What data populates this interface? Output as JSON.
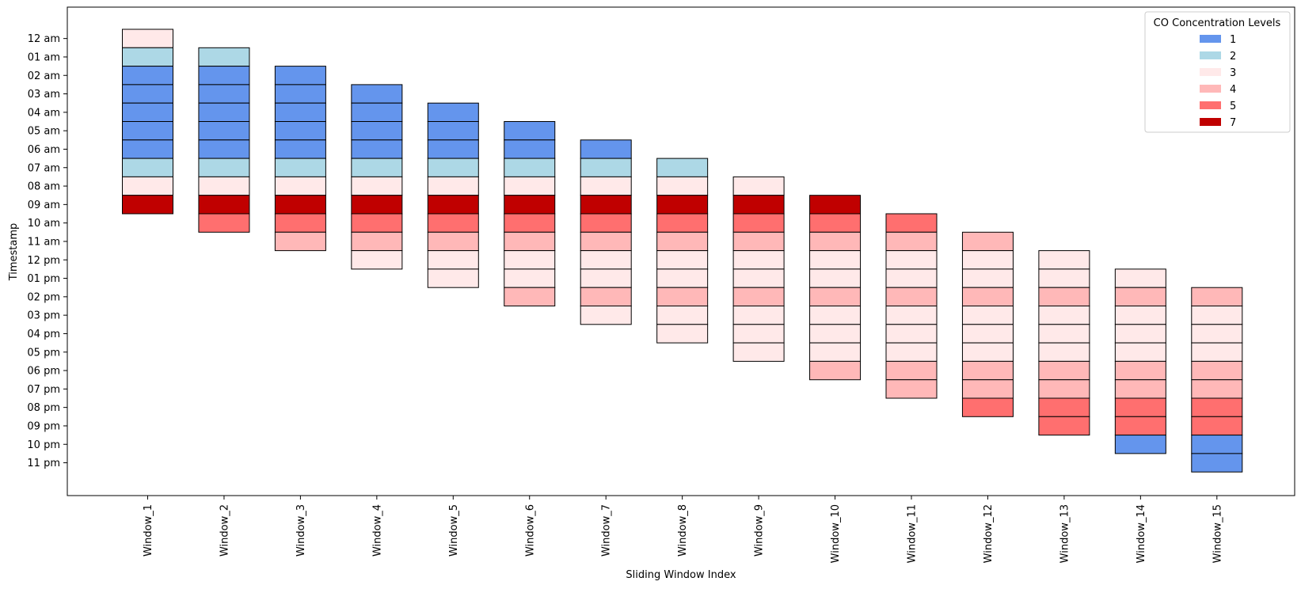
{
  "chart_data": {
    "type": "heatmap",
    "xlabel": "Sliding Window Index",
    "ylabel": "Timestamp",
    "categories": [
      "Window_1",
      "Window_2",
      "Window_3",
      "Window_4",
      "Window_5",
      "Window_6",
      "Window_7",
      "Window_8",
      "Window_9",
      "Window_10",
      "Window_11",
      "Window_12",
      "Window_13",
      "Window_14",
      "Window_15"
    ],
    "timestamps": [
      "12 am",
      "01 am",
      "02 am",
      "03 am",
      "04 am",
      "05 am",
      "06 am",
      "07 am",
      "08 am",
      "09 am",
      "10 am",
      "11 am",
      "12 pm",
      "01 pm",
      "02 pm",
      "03 pm",
      "04 pm",
      "05 pm",
      "06 pm",
      "07 pm",
      "08 pm",
      "09 pm",
      "10 pm",
      "11 pm"
    ],
    "legend": {
      "title": "CO Concentration Levels",
      "placement": "top-right",
      "entries": [
        {
          "label": "1",
          "level": 1,
          "color": "#6495ED"
        },
        {
          "label": "2",
          "level": 2,
          "color": "#ADD8E6"
        },
        {
          "label": "3",
          "level": 3,
          "color": "#FFE9E9"
        },
        {
          "label": "4",
          "level": 4,
          "color": "#FFB8B8"
        },
        {
          "label": "5",
          "level": 5,
          "color": "#FF6F6F"
        },
        {
          "label": "7",
          "level": 7,
          "color": "#C00000"
        }
      ]
    },
    "windows": [
      {
        "name": "Window_1",
        "start_index": 0,
        "levels": [
          3,
          2,
          1,
          1,
          1,
          1,
          1,
          2,
          3,
          7
        ]
      },
      {
        "name": "Window_2",
        "start_index": 1,
        "levels": [
          2,
          1,
          1,
          1,
          1,
          1,
          2,
          3,
          7,
          5
        ]
      },
      {
        "name": "Window_3",
        "start_index": 2,
        "levels": [
          1,
          1,
          1,
          1,
          1,
          2,
          3,
          7,
          5,
          4
        ]
      },
      {
        "name": "Window_4",
        "start_index": 3,
        "levels": [
          1,
          1,
          1,
          1,
          2,
          3,
          7,
          5,
          4,
          3
        ]
      },
      {
        "name": "Window_5",
        "start_index": 4,
        "levels": [
          1,
          1,
          1,
          2,
          3,
          7,
          5,
          4,
          3,
          3
        ]
      },
      {
        "name": "Window_6",
        "start_index": 5,
        "levels": [
          1,
          1,
          2,
          3,
          7,
          5,
          4,
          3,
          3,
          4
        ]
      },
      {
        "name": "Window_7",
        "start_index": 6,
        "levels": [
          1,
          2,
          3,
          7,
          5,
          4,
          3,
          3,
          4,
          3
        ]
      },
      {
        "name": "Window_8",
        "start_index": 7,
        "levels": [
          2,
          3,
          7,
          5,
          4,
          3,
          3,
          4,
          3,
          3
        ]
      },
      {
        "name": "Window_9",
        "start_index": 8,
        "levels": [
          3,
          7,
          5,
          4,
          3,
          3,
          4,
          3,
          3,
          3
        ]
      },
      {
        "name": "Window_10",
        "start_index": 9,
        "levels": [
          7,
          5,
          4,
          3,
          3,
          4,
          3,
          3,
          3,
          4
        ]
      },
      {
        "name": "Window_11",
        "start_index": 10,
        "levels": [
          5,
          4,
          3,
          3,
          4,
          3,
          3,
          3,
          4,
          4
        ]
      },
      {
        "name": "Window_12",
        "start_index": 11,
        "levels": [
          4,
          3,
          3,
          4,
          3,
          3,
          3,
          4,
          4,
          5
        ]
      },
      {
        "name": "Window_13",
        "start_index": 12,
        "levels": [
          3,
          3,
          4,
          3,
          3,
          3,
          4,
          4,
          5,
          5
        ]
      },
      {
        "name": "Window_14",
        "start_index": 13,
        "levels": [
          3,
          4,
          3,
          3,
          3,
          4,
          4,
          5,
          5,
          1
        ]
      },
      {
        "name": "Window_15",
        "start_index": 14,
        "levels": [
          4,
          3,
          3,
          3,
          4,
          4,
          5,
          5,
          1,
          1
        ]
      }
    ]
  }
}
